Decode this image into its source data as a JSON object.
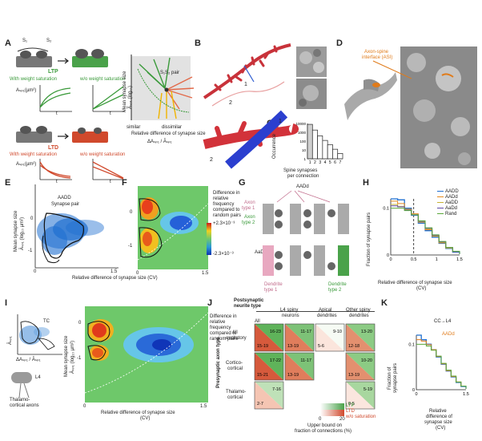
{
  "panels": {
    "A": "A",
    "B": "B",
    "C": "C",
    "D": "D",
    "E": "E",
    "F": "F",
    "G": "G",
    "H": "H",
    "I": "I",
    "J": "J",
    "K": "K"
  },
  "panel_a": {
    "s1": "S₁",
    "s2": "S₂",
    "ltp": "LTP",
    "ltd": "LTD",
    "with_sat": "With weight saturation",
    "wo_sat": "w/o weight saturation",
    "with_sat_ltd": "With weight saturation",
    "wo_sat_ltd": "w/o weight saturation",
    "y_mini": "Aₛₚ₁(µm²)",
    "y_mini_ltd": "Aₛₚ₁(µm²)",
    "t": "t",
    "t2": "t",
    "t3": "t",
    "t4": "t",
    "pair": "S₁S₂ pair",
    "ylabel": "Mean synapse size",
    "ylabel2": "Ā̅ₛₚ₁ (log₁₀)",
    "xlabel": "Relative difference of synapse size",
    "xformula": "ΔAₛₚ₁ / Āₛₚ₁",
    "similar": "similar",
    "dissimilar": "dissimilar"
  },
  "panel_b": {
    "n1": "1",
    "n2": "2",
    "n1b": "1",
    "n2b": "2"
  },
  "panel_c": {
    "ylabel": "Occurrence",
    "xlabel": "Spine synapses per connection"
  },
  "panel_d": {
    "asi": "Axon-spine interface (ASI)"
  },
  "panel_e": {
    "annot": "AADD",
    "annot2": "Synapse pair",
    "ylabel": "Mean synapse size",
    "ylabel2": "Āₛₚ₁ (log₁₀ µm²)",
    "xlabel": "Relative difference of synapse size (CV)",
    "yt0": "0",
    "yt1": "-1",
    "xt0": "0",
    "xt1": "1.5"
  },
  "panel_f": {
    "note1": "Difference in",
    "note2": "relative",
    "note3": "frequency",
    "note4": "compared to",
    "note5": "random pairs",
    "cb_top": "+2.3×10⁻³",
    "cb_bot": "-2.3×10⁻³",
    "yt0": "0",
    "yt1": "-1",
    "xt0": "0",
    "xt1": "1.5"
  },
  "panel_g": {
    "aadd": "AADd",
    "axon1a": "Axon",
    "axon1b": "type 1",
    "axon2a": "Axon",
    "axon2b": "type 2",
    "aadd2": "AaDD",
    "den1a": "Dendrite",
    "den1b": "type 1",
    "den2a": "Dendrite",
    "den2b": "type 2"
  },
  "panel_h": {
    "ylabel": "Fraction of synapse pairs",
    "xlabel": "Relative difference of synapse size",
    "xlabel2": "(CV)",
    "legend": [
      {
        "name": "AADD",
        "color": "#1f6fd0"
      },
      {
        "name": "AADd",
        "color": "#e58a1f"
      },
      {
        "name": "AaDD",
        "color": "#c7b233"
      },
      {
        "name": "AaDd",
        "color": "#5f4aa5"
      },
      {
        "name": "Rand",
        "color": "#5aa83a"
      }
    ]
  },
  "panel_i": {
    "tc": "TC",
    "l4": "L4",
    "thal1": "Thalamo-",
    "thal2": "cortical axons",
    "mini_y": "Āₛₚ₁",
    "mini_x": "ΔAₛₚ₁ / Āₛₚ₁",
    "ylabel": "Mean synapse size",
    "ylabel2": "Āₛₚ₁ (log₁₀ µm²)",
    "xlabel": "Relative difference of synapse size",
    "xlabel2": "(CV)",
    "note1": "Difference in",
    "note2": "relative",
    "note3": "frequency",
    "note4": "compared to",
    "note5": "random pairs",
    "yt0": "0",
    "yt1": "-1",
    "xt0": "0",
    "xt1": "1.5"
  },
  "panel_j": {
    "col_title1": "Postsynaptic",
    "col_title2": "neurite type",
    "col1": "All",
    "col2a": "L4 spiny",
    "col2b": "neurons",
    "col3a": "Apical",
    "col3b": "dendrites",
    "col4a": "Other spiny",
    "col4b": "dendrites",
    "row_axis": "Presynaptic axon type",
    "row1a": "All",
    "row1b": "excitatory",
    "row2a": "Cortico-",
    "row2b": "cortical",
    "row3a": "Thalamo-",
    "row3b": "cortical",
    "cells": [
      {
        "top": "16-23",
        "bot": "15-19"
      },
      {
        "top": "11-17",
        "bot": "13-19"
      },
      {
        "top": "9-10",
        "bot": "5-6"
      },
      {
        "top": "13-20",
        "bot": "12-18"
      },
      {
        "top": "17-22",
        "bot": "15-21"
      },
      {
        "top": "11-17",
        "bot": "13-19"
      },
      {
        "top": "10-20",
        "bot": "13-19"
      },
      {
        "top": "7-16",
        "bot": "2-7"
      },
      {
        "top": "5-19",
        "bot": "0-5"
      }
    ],
    "legend_ltp": "LTP",
    "legend_ltd": "LTD",
    "legend_sat": "w/o saturation",
    "scale0": "0",
    "scale20": "20",
    "foot1": "Upper bound on",
    "foot2": "fraction of connections (%)"
  },
  "panel_k": {
    "title": "CC→L4",
    "annot": "AADd",
    "ylabel": "Fraction of",
    "ylabel2": "synapse pairs",
    "xlabel": "Relative",
    "xlabel2": "difference of",
    "xlabel3": "synapse size",
    "xlabel4": "(CV)"
  },
  "chart_data": [
    {
      "panel": "C",
      "type": "bar",
      "categories": [
        "1",
        "2",
        "3",
        "4",
        "5",
        "6",
        "7"
      ],
      "values": [
        8000,
        1800,
        400,
        120,
        40,
        12,
        4
      ],
      "ylabel": "Occurrence",
      "xlabel": "Spine synapses per connection",
      "yscale": "log",
      "ylim": [
        1,
        10000
      ],
      "yticks": [
        "10000",
        "1000",
        "100",
        "10",
        "1"
      ]
    },
    {
      "panel": "H",
      "type": "line",
      "x": [
        0,
        0.15,
        0.3,
        0.45,
        0.6,
        0.75,
        0.9,
        1.05,
        1.2,
        1.35,
        1.5
      ],
      "series": [
        {
          "name": "AADD",
          "values": [
            0.12,
            0.118,
            0.1,
            0.085,
            0.068,
            0.052,
            0.038,
            0.025,
            0.014,
            0.006,
            0.002
          ]
        },
        {
          "name": "AADd",
          "values": [
            0.115,
            0.11,
            0.098,
            0.088,
            0.07,
            0.054,
            0.04,
            0.026,
            0.015,
            0.007,
            0.002
          ]
        },
        {
          "name": "AaDD",
          "values": [
            0.108,
            0.104,
            0.097,
            0.086,
            0.071,
            0.056,
            0.041,
            0.027,
            0.015,
            0.007,
            0.002
          ]
        },
        {
          "name": "AaDd",
          "values": [
            0.105,
            0.103,
            0.096,
            0.086,
            0.072,
            0.057,
            0.042,
            0.028,
            0.016,
            0.007,
            0.002
          ]
        },
        {
          "name": "Rand",
          "values": [
            0.1,
            0.1,
            0.095,
            0.086,
            0.073,
            0.058,
            0.043,
            0.029,
            0.016,
            0.008,
            0.002
          ]
        }
      ],
      "ylabel": "Fraction of synapse pairs",
      "xlabel": "Relative difference of synapse size (CV)",
      "xlim": [
        0,
        1.5
      ],
      "ylim": [
        0,
        0.12
      ],
      "xticks": [
        "0",
        "0.5",
        "1",
        "1.5"
      ],
      "yticks": [
        "0",
        "0.1"
      ],
      "threshold": 0.5
    },
    {
      "panel": "K",
      "type": "line",
      "x": [
        0,
        0.15,
        0.3,
        0.45,
        0.6,
        0.75,
        0.9,
        1.05,
        1.2,
        1.35,
        1.5
      ],
      "series": [
        {
          "name": "CC→L4",
          "values": [
            0.12,
            0.11,
            0.1,
            0.088,
            0.072,
            0.056,
            0.041,
            0.028,
            0.016,
            0.007,
            0.002
          ]
        },
        {
          "name": "AADd",
          "values": [
            0.11,
            0.107,
            0.099,
            0.088,
            0.073,
            0.057,
            0.042,
            0.029,
            0.017,
            0.008,
            0.002
          ]
        },
        {
          "name": "Rand",
          "values": [
            0.1,
            0.1,
            0.096,
            0.087,
            0.074,
            0.058,
            0.043,
            0.03,
            0.017,
            0.008,
            0.002
          ]
        }
      ],
      "xlim": [
        0,
        1.5
      ],
      "ylim": [
        0,
        0.12
      ],
      "xticks": [
        "0",
        "1.5"
      ],
      "yticks": [
        "0",
        "0.1"
      ],
      "annotation": "AADd"
    }
  ],
  "colors": {
    "green": "#3a9a3a",
    "red": "#d0492c",
    "blue": "#1f6fd0",
    "orange": "#e07b1a"
  }
}
